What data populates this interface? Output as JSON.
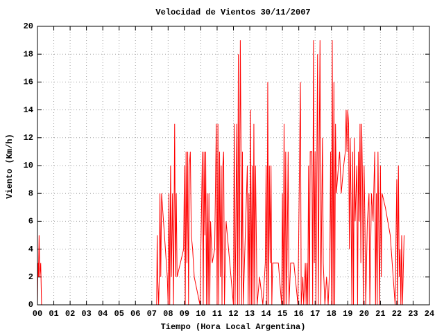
{
  "chart_data": {
    "type": "line",
    "title": "Velocidad de Vientos 30/11/2007",
    "x_label": "Tiempo (Hora Local Argentina)",
    "y_label": "Viento (Km/h)",
    "color": "#ff0000",
    "grid": true,
    "xlim": [
      0,
      24
    ],
    "ylim": [
      0,
      20
    ],
    "xticks": [
      {
        "value": 0,
        "label": "00"
      },
      {
        "value": 1,
        "label": "01"
      },
      {
        "value": 2,
        "label": "02"
      },
      {
        "value": 3,
        "label": "03"
      },
      {
        "value": 4,
        "label": "04"
      },
      {
        "value": 5,
        "label": "05"
      },
      {
        "value": 6,
        "label": "06"
      },
      {
        "value": 7,
        "label": "07"
      },
      {
        "value": 8,
        "label": "08"
      },
      {
        "value": 9,
        "label": "09"
      },
      10,
      11,
      12,
      13,
      14,
      15,
      16,
      17,
      18,
      19,
      20,
      21,
      22,
      23,
      24
    ],
    "yticks": [
      0,
      2,
      4,
      6,
      8,
      10,
      12,
      14,
      16,
      18,
      20
    ],
    "x": [
      0,
      0.03,
      0.06,
      0.1,
      0.14,
      0.2,
      0.25,
      7.3,
      7.33,
      7.36,
      7.42,
      7.46,
      7.5,
      7.55,
      7.6,
      7.95,
      8.0,
      8.05,
      8.1,
      8.15,
      8.2,
      8.27,
      8.33,
      8.4,
      8.45,
      8.5,
      8.55,
      8.95,
      9.0,
      9.05,
      9.1,
      9.15,
      9.2,
      9.25,
      9.3,
      9.36,
      9.42,
      9.5,
      9.6,
      9.95,
      10.1,
      10.15,
      10.2,
      10.25,
      10.3,
      10.35,
      10.4,
      10.45,
      10.5,
      10.55,
      10.6,
      10.7,
      10.85,
      10.95,
      11.0,
      11.05,
      11.1,
      11.15,
      11.2,
      11.25,
      11.3,
      11.35,
      11.4,
      11.45,
      11.55,
      11.7,
      11.85,
      12.0,
      12.05,
      12.1,
      12.15,
      12.2,
      12.25,
      12.3,
      12.35,
      12.42,
      12.46,
      12.5,
      12.55,
      12.6,
      12.85,
      12.9,
      12.95,
      13.0,
      13.05,
      13.1,
      13.15,
      13.2,
      13.25,
      13.3,
      13.35,
      13.4,
      13.45,
      13.6,
      13.8,
      13.95,
      14.0,
      14.05,
      14.1,
      14.15,
      14.2,
      14.25,
      14.3,
      14.35,
      14.4,
      14.75,
      14.95,
      15.0,
      15.05,
      15.1,
      15.15,
      15.2,
      15.25,
      15.3,
      15.35,
      15.4,
      15.5,
      15.7,
      15.95,
      16.1,
      16.15,
      16.25,
      16.3,
      16.4,
      16.45,
      16.5,
      16.55,
      16.6,
      16.65,
      16.7,
      16.8,
      16.85,
      16.9,
      16.95,
      17.0,
      17.05,
      17.15,
      17.2,
      17.25,
      17.3,
      17.35,
      17.45,
      17.5,
      17.6,
      17.7,
      17.8,
      17.9,
      17.95,
      18.0,
      18.05,
      18.1,
      18.15,
      18.2,
      18.25,
      18.3,
      18.5,
      18.6,
      18.75,
      18.85,
      18.9,
      18.95,
      19.0,
      19.05,
      19.1,
      19.15,
      19.2,
      19.25,
      19.3,
      19.35,
      19.4,
      19.45,
      19.5,
      19.55,
      19.6,
      19.65,
      19.7,
      19.75,
      19.8,
      19.85,
      19.9,
      19.95,
      20.0,
      20.05,
      20.1,
      20.2,
      20.3,
      20.35,
      20.45,
      20.55,
      20.65,
      20.7,
      20.75,
      20.8,
      20.85,
      20.9,
      20.95,
      21.0,
      21.05,
      21.1,
      21.3,
      21.45,
      21.6,
      21.9,
      22.0,
      22.05,
      22.1,
      22.15,
      22.2,
      22.25,
      22.3,
      22.35,
      22.45
    ],
    "values": [
      0,
      3,
      2,
      5,
      2,
      3,
      0,
      0,
      5,
      2,
      0,
      2,
      8,
      2,
      8,
      2,
      0,
      8,
      0,
      10,
      2,
      8,
      0,
      13,
      2,
      8,
      2,
      4,
      10,
      0,
      11,
      3,
      11,
      0,
      10,
      11,
      5,
      4,
      2,
      0,
      11,
      0,
      11,
      5,
      11,
      0,
      8,
      0,
      8,
      0,
      6,
      3,
      4,
      13,
      0,
      13,
      0,
      11,
      2,
      10,
      0,
      10,
      11,
      0,
      6,
      4,
      2,
      0,
      13,
      0,
      6,
      13,
      0,
      18,
      0,
      19,
      12,
      0,
      11,
      0,
      10,
      0,
      8,
      0,
      14,
      0,
      10,
      0,
      13,
      0,
      10,
      5,
      0,
      2,
      0,
      3,
      10,
      0,
      16,
      0,
      10,
      3,
      10,
      0,
      3,
      3,
      0,
      8,
      0,
      13,
      0,
      11,
      0,
      5,
      11,
      0,
      3,
      3,
      0,
      16,
      0,
      2,
      0,
      3,
      0,
      3,
      0,
      10,
      0,
      11,
      11,
      0,
      19,
      3,
      11,
      0,
      18,
      0,
      11,
      19,
      0,
      12,
      3,
      0,
      2,
      0,
      3,
      11,
      0,
      19,
      0,
      16,
      0,
      13,
      8,
      11,
      8,
      10,
      11,
      14,
      11,
      14,
      13,
      4,
      12,
      7,
      0,
      11,
      0,
      12,
      6,
      8,
      10,
      0,
      11,
      6,
      13,
      3,
      13,
      9,
      0,
      10,
      6,
      0,
      6,
      8,
      0,
      8,
      6,
      11,
      0,
      8,
      0,
      11,
      5,
      0,
      10,
      2,
      8,
      7,
      6,
      5,
      0,
      9,
      0,
      10,
      2,
      4,
      0,
      5,
      0,
      5
    ]
  }
}
